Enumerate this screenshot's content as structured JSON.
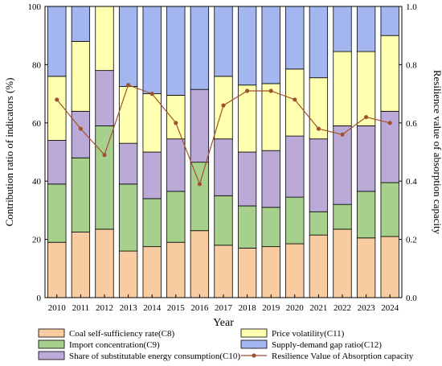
{
  "chart_data": {
    "type": "bar",
    "stacked": true,
    "secondary_type": "line",
    "categories": [
      "2010",
      "2011",
      "2012",
      "2013",
      "2014",
      "2015",
      "2016",
      "2017",
      "2018",
      "2019",
      "2020",
      "2021",
      "2022",
      "2023",
      "2024"
    ],
    "xlabel": "Year",
    "ylabel": "Contribution ratio of indicators (%)",
    "ylim": [
      0,
      100
    ],
    "yticks": [
      0,
      20,
      40,
      60,
      80,
      100
    ],
    "y2label": "Resilience value of absorption capacity",
    "y2lim": [
      0,
      1.0
    ],
    "y2ticks": [
      "0.0",
      "0.2",
      "0.4",
      "0.6",
      "0.8",
      "1.0"
    ],
    "grid": false,
    "legend_position": "bottom",
    "series": [
      {
        "name": "Coal self-sufficiency rate(C8)",
        "color": "#F8CBA0",
        "values": [
          19.0,
          22.5,
          23.5,
          16.0,
          17.5,
          19.0,
          23.0,
          18.0,
          17.0,
          17.5,
          18.5,
          21.5,
          23.5,
          20.5,
          21.0
        ]
      },
      {
        "name": "Import concentration(C9)",
        "color": "#A8D08D",
        "values": [
          20.0,
          25.5,
          35.5,
          23.0,
          16.5,
          17.5,
          23.5,
          17.0,
          14.5,
          13.5,
          16.0,
          8.0,
          8.5,
          16.0,
          18.5
        ]
      },
      {
        "name": "Share of substitutable energy consumption(C10)",
        "color": "#BBAAD8",
        "values": [
          15.0,
          16.0,
          19.0,
          14.0,
          16.0,
          18.0,
          25.0,
          19.5,
          18.5,
          19.5,
          21.0,
          25.0,
          27.0,
          22.5,
          24.5
        ]
      },
      {
        "name": "Price volatility(C11)",
        "color": "#FFFFB0",
        "values": [
          22.0,
          24.0,
          22.0,
          19.5,
          20.0,
          15.0,
          0.0,
          21.5,
          23.0,
          23.0,
          23.0,
          21.0,
          25.5,
          25.5,
          26.0
        ]
      },
      {
        "name": "Supply-demand gap ratio(C12)",
        "color": "#A4B6EF",
        "values": [
          24.0,
          12.0,
          0.0,
          27.5,
          30.0,
          30.5,
          28.5,
          24.0,
          27.0,
          26.5,
          21.5,
          24.5,
          15.5,
          15.5,
          10.0
        ]
      }
    ],
    "line_series": {
      "name": "Resilience Value of Absorption capacity",
      "color": "#A0522D",
      "values": [
        0.68,
        0.58,
        0.49,
        0.73,
        0.7,
        0.6,
        0.39,
        0.66,
        0.71,
        0.71,
        0.68,
        0.58,
        0.56,
        0.62,
        0.6
      ]
    }
  },
  "legend_layout": [
    [
      "Coal self-sufficiency rate(C8)",
      "Price volatility(C11)"
    ],
    [
      "Import concentration(C9)",
      "Supply-demand gap ratio(C12)"
    ],
    [
      "Share of substitutable energy consumption(C10)",
      "Resilience Value of Absorption capacity"
    ]
  ]
}
